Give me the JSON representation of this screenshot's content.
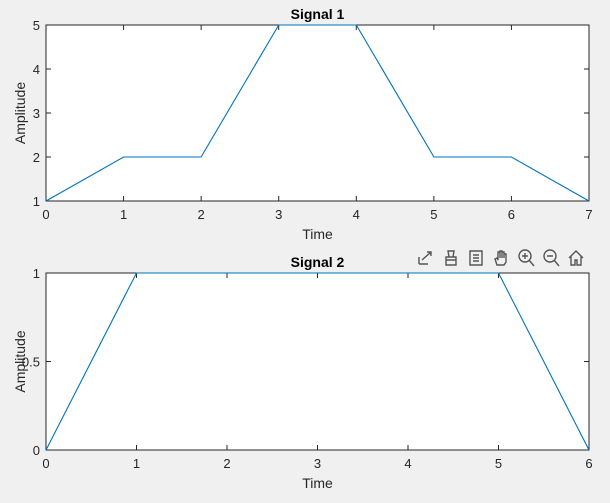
{
  "toolbar": {
    "icons": [
      "export-icon",
      "brush-icon",
      "legend-icon",
      "pan-icon",
      "zoom-in-icon",
      "zoom-out-icon",
      "home-icon"
    ]
  },
  "chart_data": [
    {
      "type": "line",
      "title": "Signal 1",
      "xlabel": "Time",
      "ylabel": "Amplitude",
      "xlim": [
        0,
        7
      ],
      "ylim": [
        1,
        5
      ],
      "xticks": [
        0,
        1,
        2,
        3,
        4,
        5,
        6,
        7
      ],
      "yticks": [
        1,
        2,
        3,
        4,
        5
      ],
      "xtick_labels": [
        "0",
        "1",
        "2",
        "3",
        "4",
        "5",
        "6",
        "7"
      ],
      "ytick_labels": [
        "1",
        "2",
        "3",
        "4",
        "5"
      ],
      "grid": false,
      "color": "#0072bd",
      "series": [
        {
          "x": [
            0,
            1,
            2,
            3,
            4,
            5,
            6,
            7
          ],
          "values": [
            1,
            2,
            2,
            5,
            5,
            2,
            2,
            1
          ]
        }
      ]
    },
    {
      "type": "line",
      "title": "Signal 2",
      "xlabel": "Time",
      "ylabel": "Amplitude",
      "xlim": [
        0,
        6
      ],
      "ylim": [
        0,
        1
      ],
      "xticks": [
        0,
        1,
        2,
        3,
        4,
        5,
        6
      ],
      "yticks": [
        0,
        0.5,
        1
      ],
      "xtick_labels": [
        "0",
        "1",
        "2",
        "3",
        "4",
        "5",
        "6"
      ],
      "ytick_labels": [
        "0",
        "0.5",
        "1"
      ],
      "grid": false,
      "color": "#0072bd",
      "series": [
        {
          "x": [
            0,
            1,
            5,
            6
          ],
          "values": [
            0,
            1,
            1,
            0
          ]
        }
      ]
    }
  ]
}
